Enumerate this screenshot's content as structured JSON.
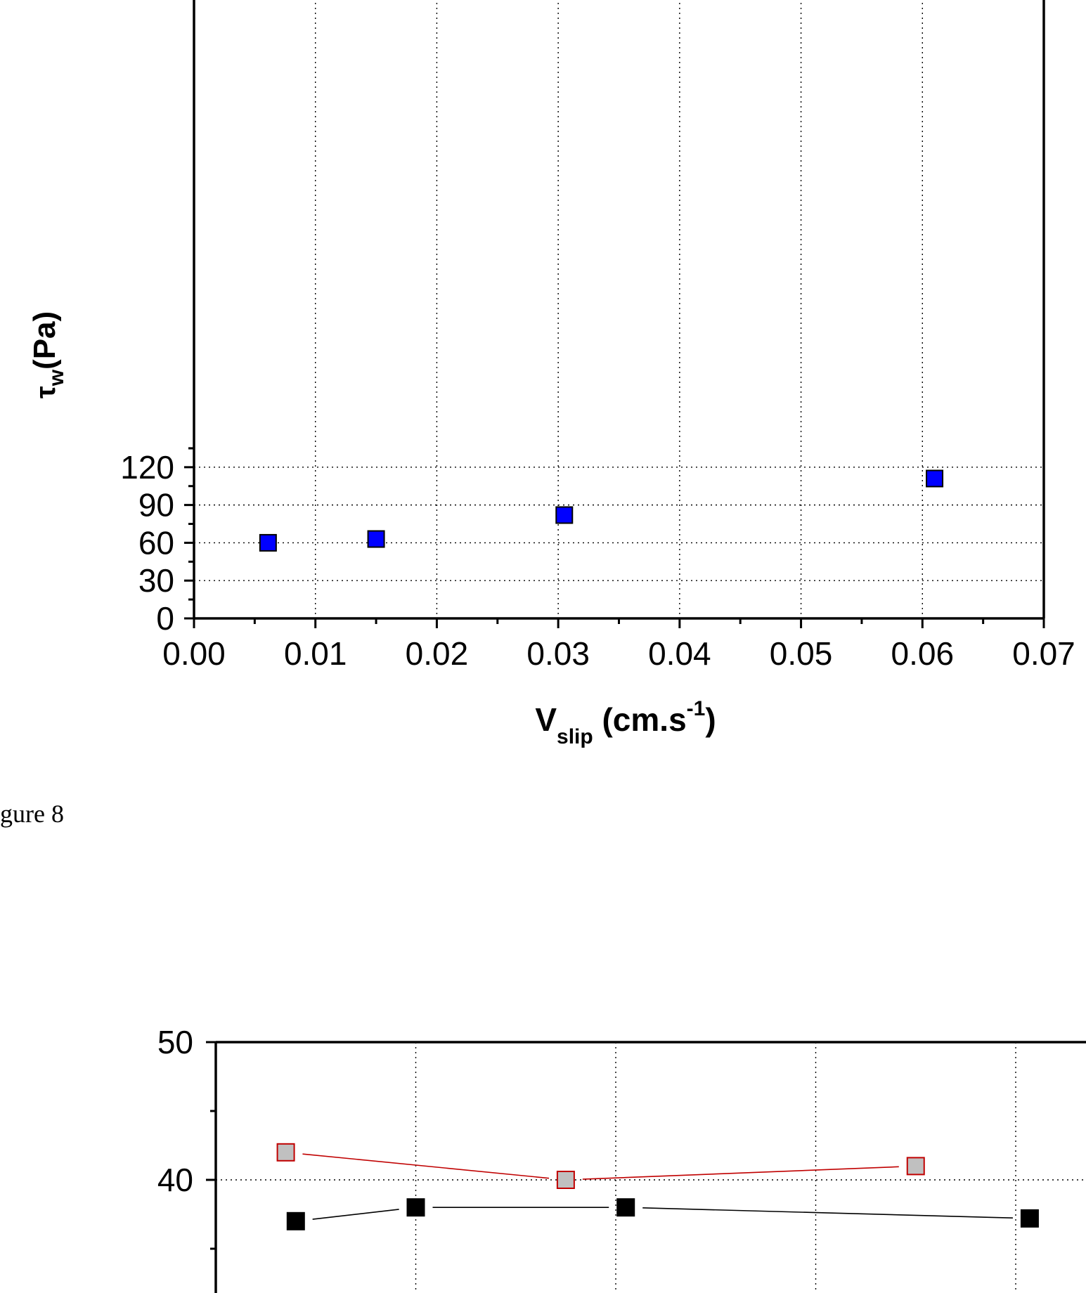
{
  "caption": "gure 8",
  "chart_data": [
    {
      "type": "scatter",
      "title": "",
      "xlabel": {
        "main": "V",
        "sub": "slip",
        "unit_pre": " (cm.s",
        "sup": "-1",
        "unit_post": ")"
      },
      "ylabel": {
        "main": "τ",
        "sub": "w",
        "rest": "(Pa)"
      },
      "xlim": [
        0.0,
        0.07
      ],
      "ylim": [
        0,
        150
      ],
      "xticks": [
        "0.00",
        "0.01",
        "0.02",
        "0.03",
        "0.04",
        "0.05",
        "0.06",
        "0.07"
      ],
      "yticks": [
        "0",
        "30",
        "60",
        "90",
        "120"
      ],
      "grid": true,
      "marker_color": "#0000ff",
      "points": [
        {
          "x": 0.0061,
          "y": 60
        },
        {
          "x": 0.015,
          "y": 63
        },
        {
          "x": 0.0305,
          "y": 82
        },
        {
          "x": 0.061,
          "y": 111
        }
      ]
    },
    {
      "type": "line",
      "title": "",
      "ylim_visible_top": 50,
      "yticks": [
        "40",
        "50"
      ],
      "grid": true,
      "series": [
        {
          "color": "#c00000",
          "marker_fill": "#c0c0c0",
          "values": [
            {
              "x": 0.35,
              "y": 42
            },
            {
              "x": 1.75,
              "y": 40
            },
            {
              "x": 3.5,
              "y": 41
            }
          ]
        },
        {
          "color": "#000000",
          "marker_fill": "#000000",
          "values": [
            {
              "x": 0.4,
              "y": 37
            },
            {
              "x": 1.0,
              "y": 38
            },
            {
              "x": 2.05,
              "y": 38
            },
            {
              "x": 4.07,
              "y": 37.2
            }
          ]
        }
      ]
    }
  ]
}
